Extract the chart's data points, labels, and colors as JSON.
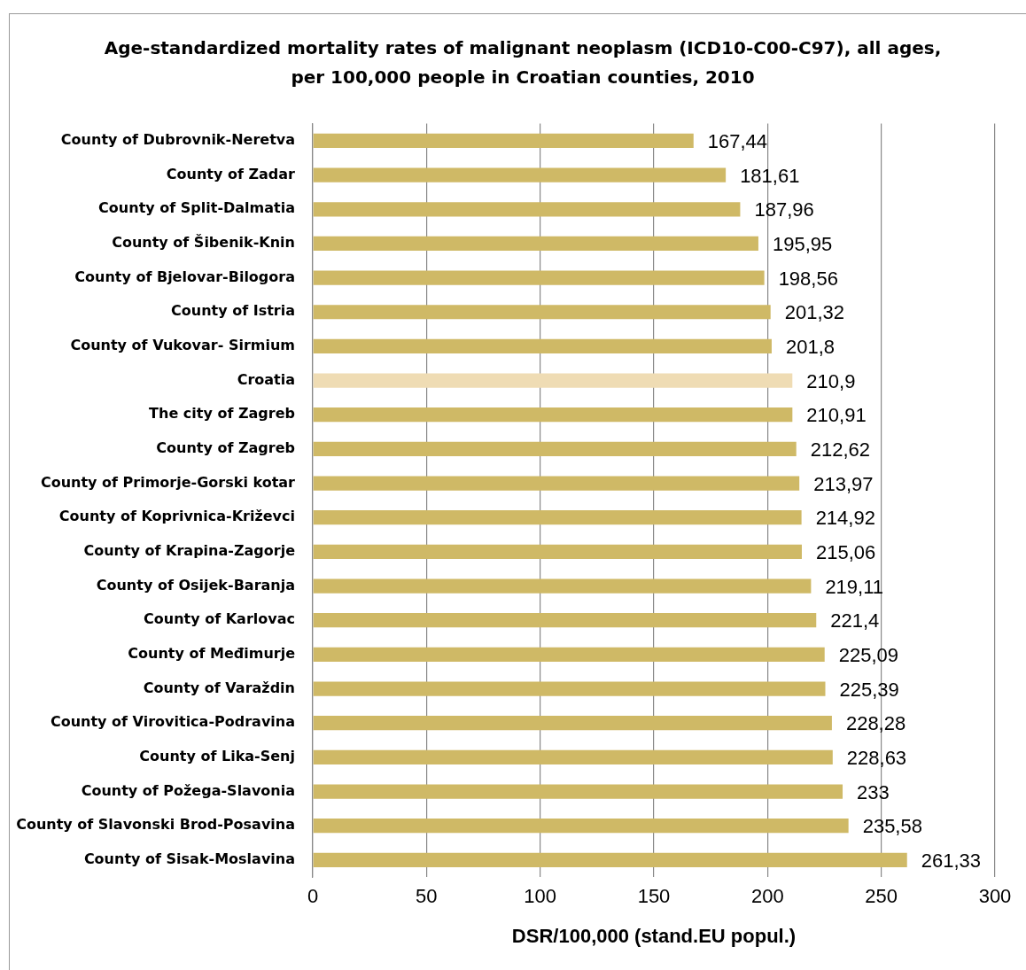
{
  "chart_data": {
    "type": "bar",
    "orientation": "horizontal",
    "title": "Age-standardized mortality rates of malignant neoplasm (ICD10-C00-C97), all ages, per 100,000 people in Croatian counties, 2010",
    "xlabel": "DSR/100,000 (stand.EU popul.)",
    "categories": [
      "County of Dubrovnik-Neretva",
      "County of Zadar",
      "County of Split-Dalmatia",
      "County of Šibenik-Knin",
      "County of Bjelovar-Bilogora",
      "County of Istria",
      "County of Vukovar- Sirmium",
      "Croatia",
      "The city of Zagreb",
      "County of Zagreb",
      "County of Primorje-Gorski kotar",
      "County of Koprivnica-Križevci",
      "County of Krapina-Zagorje",
      "County of Osijek-Baranja",
      "County of Karlovac",
      "County of Međimurje",
      "County of Varaždin",
      "County of Virovitica-Podravina",
      "County of Lika-Senj",
      "County of Požega-Slavonia",
      "County of Slavonski Brod-Posavina",
      "County of Sisak-Moslavina"
    ],
    "values": [
      167.44,
      181.61,
      187.96,
      195.95,
      198.56,
      201.32,
      201.8,
      210.9,
      210.91,
      212.62,
      213.97,
      214.92,
      215.06,
      219.11,
      221.4,
      225.09,
      225.39,
      228.28,
      228.63,
      233,
      235.58,
      261.33
    ],
    "value_labels": [
      "167,44",
      "181,61",
      "187,96",
      "195,95",
      "198,56",
      "201,32",
      "201,8",
      "210,9",
      "210,91",
      "212,62",
      "213,97",
      "214,92",
      "215,06",
      "219,11",
      "221,4",
      "225,09",
      "225,39",
      "228,28",
      "228,63",
      "233",
      "235,58",
      "261,33"
    ],
    "colors": [
      "#cfb966",
      "#cfb966",
      "#cfb966",
      "#cfb966",
      "#cfb966",
      "#cfb966",
      "#cfb966",
      "#efdcb4",
      "#cfb966",
      "#cfb966",
      "#cfb966",
      "#cfb966",
      "#cfb966",
      "#cfb966",
      "#cfb966",
      "#cfb966",
      "#cfb966",
      "#cfb966",
      "#cfb966",
      "#cfb966",
      "#cfb966",
      "#cfb966"
    ],
    "xlim": [
      0,
      300
    ],
    "xticks": [
      0,
      50,
      100,
      150,
      200,
      250,
      300
    ],
    "grid": "x",
    "legend": false
  }
}
